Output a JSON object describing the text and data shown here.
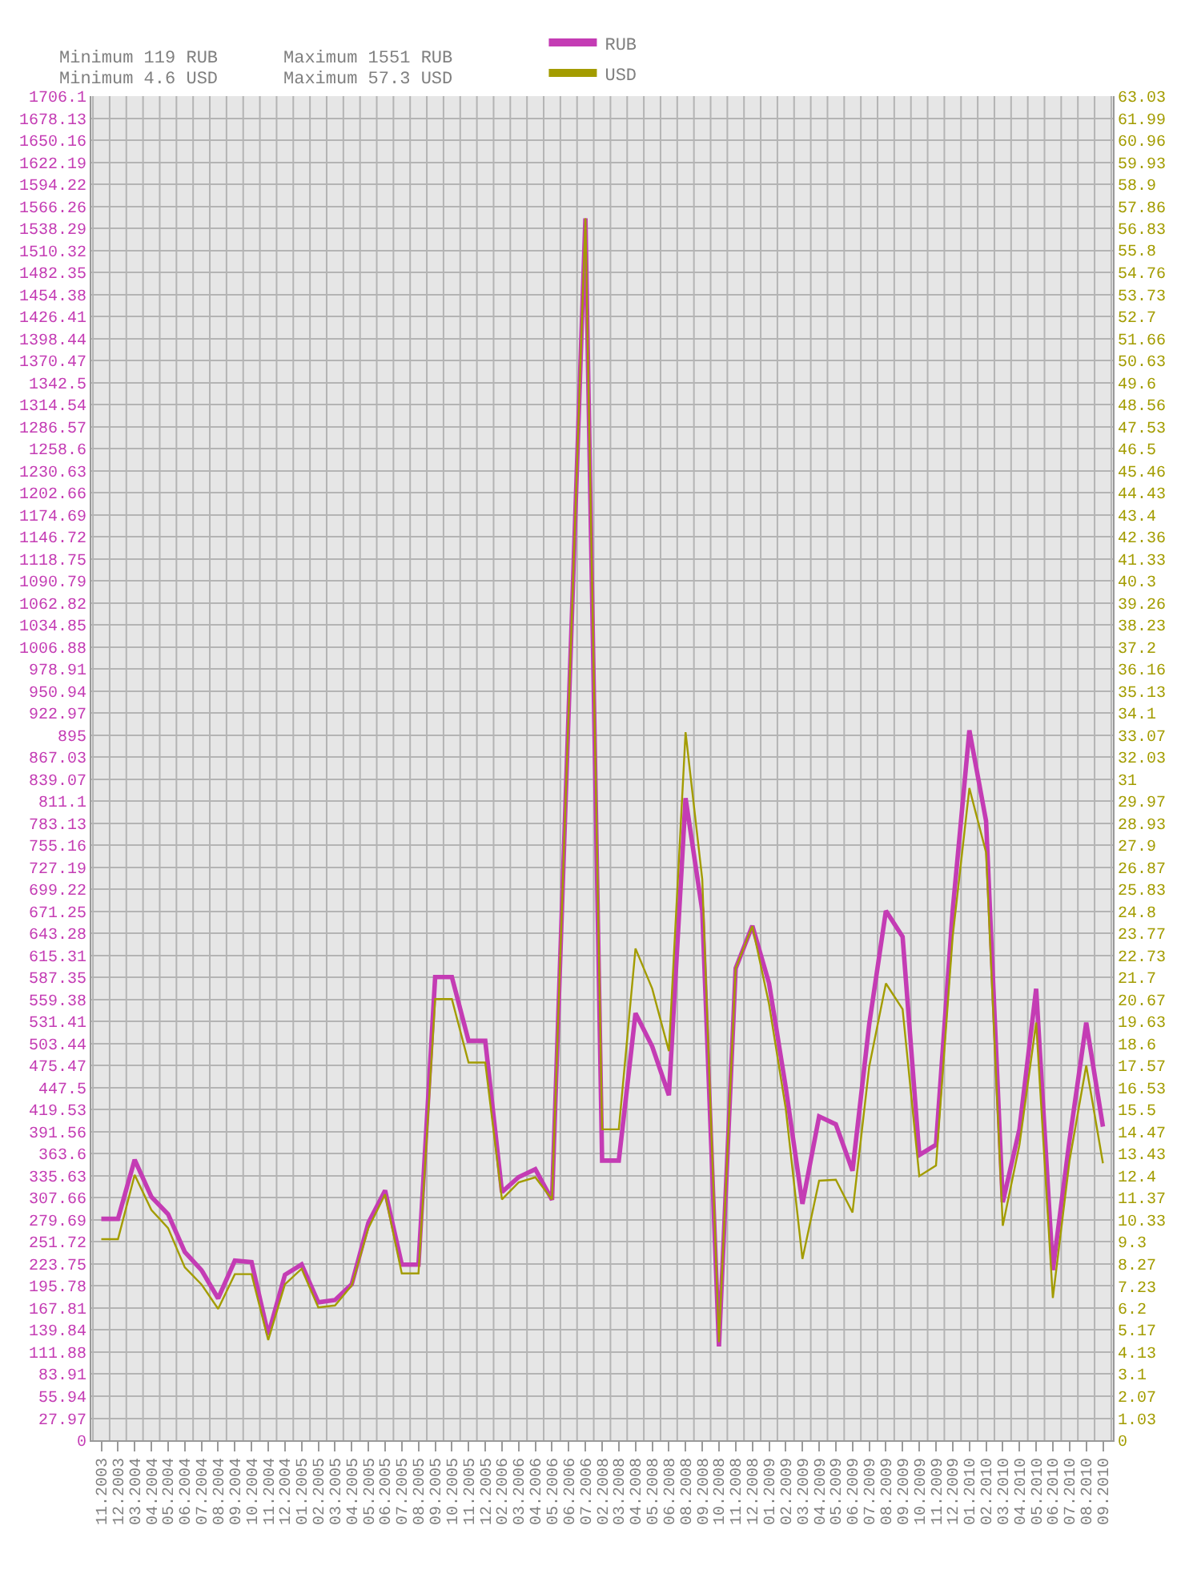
{
  "chart_data": {
    "type": "line",
    "annotations": [
      "Minimum 119 RUB",
      "Minimum 4.6 USD",
      "Maximum 1551 RUB",
      "Maximum 57.3 USD"
    ],
    "categories": [
      "11.2003",
      "12.2003",
      "03.2004",
      "04.2004",
      "05.2004",
      "06.2004",
      "07.2004",
      "08.2004",
      "09.2004",
      "10.2004",
      "11.2004",
      "12.2004",
      "01.2005",
      "02.2005",
      "03.2005",
      "04.2005",
      "05.2005",
      "06.2005",
      "07.2005",
      "08.2005",
      "09.2005",
      "10.2005",
      "11.2005",
      "12.2005",
      "02.2006",
      "03.2006",
      "04.2006",
      "05.2006",
      "06.2006",
      "07.2006",
      "02.2008",
      "03.2008",
      "04.2008",
      "05.2008",
      "06.2008",
      "08.2008",
      "09.2008",
      "10.2008",
      "11.2008",
      "12.2008",
      "01.2009",
      "02.2009",
      "03.2009",
      "04.2009",
      "05.2009",
      "06.2009",
      "07.2009",
      "08.2009",
      "09.2009",
      "10.2009",
      "11.2009",
      "12.2009",
      "01.2010",
      "02.2010",
      "03.2010",
      "04.2010",
      "05.2010",
      "06.2010",
      "07.2010",
      "08.2010",
      "09.2010"
    ],
    "series": [
      {
        "name": "RUB",
        "color": "#c43cb4",
        "values": [
          281,
          281,
          356,
          309,
          287,
          239,
          216,
          180,
          228,
          226,
          134,
          210,
          223,
          175,
          178,
          198,
          276,
          317,
          223,
          223,
          588,
          588,
          507,
          507,
          315,
          334,
          344,
          305,
          928,
          1551,
          355,
          355,
          542,
          500,
          438,
          815,
          672,
          119,
          599,
          653,
          580,
          448,
          300,
          411,
          401,
          342,
          528,
          672,
          639,
          362,
          375,
          672,
          901,
          786,
          302,
          395,
          573,
          216,
          381,
          530,
          398
        ]
      },
      {
        "name": "USD",
        "color": "#a39c00",
        "axis": "y2",
        "values": [
          9.43,
          9.43,
          12.44,
          10.8,
          9.95,
          8.11,
          7.31,
          6.16,
          7.79,
          7.79,
          4.7,
          7.31,
          8.04,
          6.23,
          6.32,
          7.26,
          9.95,
          11.53,
          7.82,
          7.82,
          20.69,
          20.69,
          17.71,
          17.71,
          11.29,
          12.09,
          12.33,
          11.29,
          34.3,
          57.3,
          14.58,
          14.58,
          23.06,
          21.18,
          18.25,
          33.2,
          26.3,
          4.6,
          22.13,
          24.11,
          20.45,
          15.56,
          8.5,
          12.17,
          12.22,
          10.68,
          17.52,
          21.42,
          20.21,
          12.39,
          12.88,
          23.62,
          30.58,
          27.56,
          10.06,
          13.85,
          19.59,
          6.67,
          13.12,
          17.57,
          12.99
        ]
      }
    ],
    "ylim": [
      0,
      1706.1
    ],
    "yticks": [
      0,
      27.97,
      55.94,
      83.91,
      111.88,
      139.84,
      167.81,
      195.78,
      223.75,
      251.72,
      279.69,
      307.66,
      335.63,
      363.6,
      391.56,
      419.53,
      447.5,
      475.47,
      503.44,
      531.41,
      559.38,
      587.35,
      615.31,
      643.28,
      671.25,
      699.22,
      727.19,
      755.16,
      783.13,
      811.1,
      839.07,
      867.03,
      895,
      922.97,
      950.94,
      978.91,
      1006.88,
      1034.85,
      1062.82,
      1090.79,
      1118.75,
      1146.72,
      1174.69,
      1202.66,
      1230.63,
      1258.6,
      1286.57,
      1314.54,
      1342.5,
      1370.47,
      1398.44,
      1426.41,
      1454.38,
      1482.35,
      1510.32,
      1538.29,
      1566.26,
      1594.22,
      1622.19,
      1650.16,
      1678.13,
      1706.1
    ],
    "y2lim": [
      0,
      63.03
    ],
    "y2ticks": [
      0,
      1.03,
      2.07,
      3.1,
      4.13,
      5.17,
      6.2,
      7.23,
      8.27,
      9.3,
      10.33,
      11.37,
      12.4,
      13.43,
      14.47,
      15.5,
      16.53,
      17.57,
      18.6,
      19.63,
      20.67,
      21.7,
      22.73,
      23.77,
      24.8,
      25.83,
      26.87,
      27.9,
      28.93,
      29.97,
      31,
      32.03,
      33.07,
      34.1,
      35.13,
      36.16,
      37.2,
      38.23,
      39.26,
      40.3,
      41.33,
      42.36,
      43.4,
      44.43,
      45.46,
      46.5,
      47.53,
      48.56,
      49.6,
      50.63,
      51.66,
      52.7,
      53.73,
      54.76,
      55.8,
      56.83,
      57.86,
      58.9,
      59.93,
      60.96,
      61.99,
      63.03
    ],
    "grid": true,
    "legend": "top",
    "marker": "none",
    "line_style": "solid"
  }
}
